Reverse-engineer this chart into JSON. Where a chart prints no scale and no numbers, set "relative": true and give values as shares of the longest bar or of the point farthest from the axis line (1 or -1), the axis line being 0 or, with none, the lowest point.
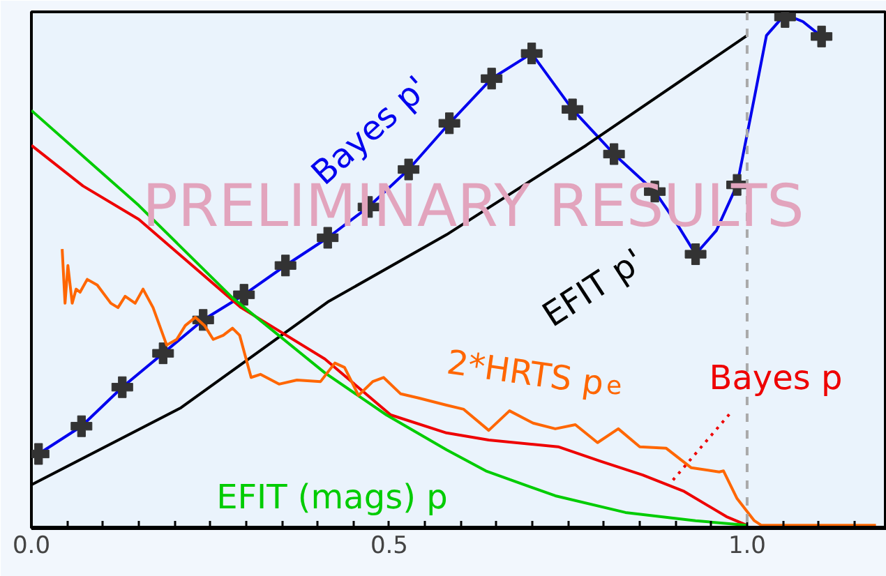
{
  "chart_data": {
    "type": "line",
    "relative": true,
    "xlim": [
      0,
      1.195
    ],
    "xticks": [
      {
        "value": 0,
        "label": "0.0"
      },
      {
        "value": 0.05,
        "label": null
      },
      {
        "value": 0.1,
        "label": null
      },
      {
        "value": 0.15,
        "label": null
      },
      {
        "value": 0.2,
        "label": null
      },
      {
        "value": 0.25,
        "label": null
      },
      {
        "value": 0.3,
        "label": null
      },
      {
        "value": 0.35,
        "label": null
      },
      {
        "value": 0.4,
        "label": null
      },
      {
        "value": 0.45,
        "label": null
      },
      {
        "value": 0.5,
        "label": "0.5"
      },
      {
        "value": 0.55,
        "label": null
      },
      {
        "value": 0.6,
        "label": null
      },
      {
        "value": 0.65,
        "label": null
      },
      {
        "value": 0.7,
        "label": null
      },
      {
        "value": 0.75,
        "label": null
      },
      {
        "value": 0.8,
        "label": null
      },
      {
        "value": 0.85,
        "label": null
      },
      {
        "value": 0.9,
        "label": null
      },
      {
        "value": 0.95,
        "label": null
      },
      {
        "value": 1.0,
        "label": "1.0"
      },
      {
        "value": 1.05,
        "label": null
      },
      {
        "value": 1.1,
        "label": null
      },
      {
        "value": 1.15,
        "label": null
      }
    ],
    "grid": false,
    "line_style": "solid",
    "series": [
      {
        "name": "Bayes p'",
        "color": "#0000ee",
        "x": [
          0.01,
          0.07,
          0.127,
          0.184,
          0.24,
          0.297,
          0.355,
          0.414,
          0.471,
          0.527,
          0.584,
          0.643,
          0.699,
          0.756,
          0.814,
          0.871,
          0.902,
          0.928,
          0.957,
          0.986,
          1.01,
          1.027,
          1.053,
          1.078,
          1.104
        ],
        "values": [
          0.144,
          0.198,
          0.274,
          0.34,
          0.405,
          0.454,
          0.511,
          0.565,
          0.625,
          0.698,
          0.788,
          0.875,
          0.924,
          0.815,
          0.728,
          0.655,
          0.592,
          0.533,
          0.579,
          0.668,
          0.837,
          0.959,
          1.0,
          0.986,
          0.957
        ]
      },
      {
        "type": "scatter",
        "marker": "cross",
        "color": "#333333",
        "x": [
          0.01,
          0.07,
          0.127,
          0.184,
          0.24,
          0.297,
          0.355,
          0.414,
          0.471,
          0.527,
          0.584,
          0.643,
          0.699,
          0.756,
          0.814,
          0.871,
          0.928,
          0.986,
          1.053,
          1.104
        ],
        "values": [
          0.144,
          0.198,
          0.274,
          0.34,
          0.405,
          0.454,
          0.511,
          0.565,
          0.625,
          0.698,
          0.788,
          0.875,
          0.924,
          0.815,
          0.728,
          0.655,
          0.533,
          0.668,
          0.995,
          0.957
        ]
      },
      {
        "name": "EFIT p'",
        "color": "#000000",
        "x": [
          0,
          0.209,
          0.414,
          0.58,
          0.775,
          1.0
        ],
        "values": [
          0.084,
          0.234,
          0.44,
          0.571,
          0.745,
          0.959
        ]
      },
      {
        "name": "Bayes p",
        "color": "#ee0000",
        "x": [
          0,
          0.072,
          0.15,
          0.293,
          0.41,
          0.502,
          0.58,
          0.639,
          0.736,
          0.795,
          0.854,
          0.912,
          0.971,
          1.0
        ],
        "values": [
          0.745,
          0.666,
          0.601,
          0.429,
          0.329,
          0.22,
          0.185,
          0.171,
          0.158,
          0.13,
          0.103,
          0.071,
          0.022,
          0.005
        ]
      },
      {
        "name": "EFIT (mags) p",
        "color": "#00cc00",
        "x": [
          0,
          0.15,
          0.281,
          0.41,
          0.496,
          0.58,
          0.635,
          0.732,
          0.83,
          0.928,
          1.0
        ],
        "values": [
          0.813,
          0.628,
          0.448,
          0.302,
          0.22,
          0.152,
          0.111,
          0.0625,
          0.03,
          0.014,
          0.005
        ]
      },
      {
        "name": "2*HRTS p$_{e}$",
        "color": "#ff6600",
        "x": [
          0.043,
          0.047,
          0.051,
          0.057,
          0.0625,
          0.068,
          0.078,
          0.092,
          0.111,
          0.121,
          0.131,
          0.145,
          0.156,
          0.17,
          0.189,
          0.203,
          0.215,
          0.229,
          0.242,
          0.254,
          0.268,
          0.281,
          0.291,
          0.307,
          0.32,
          0.346,
          0.371,
          0.404,
          0.424,
          0.4375,
          0.457,
          0.477,
          0.492,
          0.516,
          0.541,
          0.58,
          0.604,
          0.639,
          0.668,
          0.701,
          0.732,
          0.76,
          0.791,
          0.82,
          0.85,
          0.887,
          0.922,
          0.961,
          0.967,
          0.986,
          1.01,
          1.02,
          1.18
        ],
        "values": [
          0.543,
          0.4375,
          0.511,
          0.4375,
          0.465,
          0.459,
          0.484,
          0.473,
          0.4375,
          0.429,
          0.451,
          0.4375,
          0.465,
          0.429,
          0.356,
          0.367,
          0.394,
          0.41,
          0.394,
          0.367,
          0.375,
          0.389,
          0.375,
          0.293,
          0.299,
          0.28,
          0.288,
          0.285,
          0.321,
          0.3125,
          0.258,
          0.285,
          0.293,
          0.261,
          0.253,
          0.239,
          0.231,
          0.19,
          0.228,
          0.204,
          0.193,
          0.201,
          0.166,
          0.193,
          0.158,
          0.155,
          0.117,
          0.109,
          0.111,
          0.057,
          0.014,
          0.005,
          0.005
        ]
      }
    ],
    "ref_lines": [
      {
        "axis": "x",
        "value": 1.0,
        "color": "#aaaaaa",
        "line_style": "dashed"
      }
    ],
    "annotations": [
      "PRELIMINARY RESULTS"
    ]
  }
}
